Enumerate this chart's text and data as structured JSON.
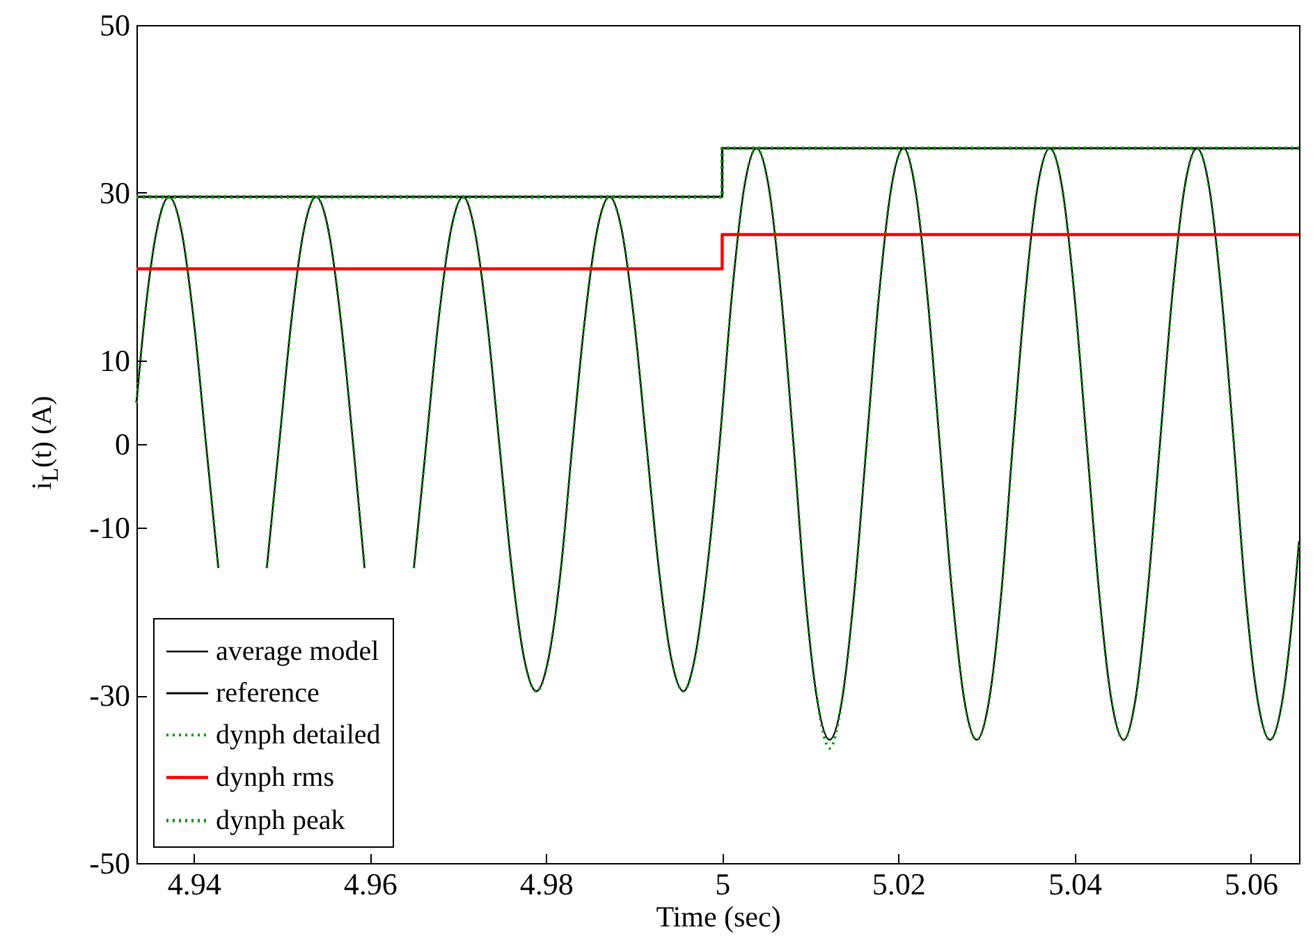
{
  "chart_data": {
    "type": "line",
    "xlabel": "Time (sec)",
    "ylabel": "i$_{L}$(t) (A)",
    "xlim": [
      4.9335,
      5.0655
    ],
    "xticks": [
      4.94,
      4.96,
      4.98,
      5,
      5.02,
      5.04,
      5.06
    ],
    "ylim": [
      -50,
      50
    ],
    "yticks": [
      -50,
      -30,
      -10,
      0,
      10,
      30,
      50
    ],
    "grid": false,
    "legend": "bottom left",
    "series": [
      {
        "name": "average model",
        "color": "#000000",
        "type": "line",
        "line_style": "solid",
        "x": [
          4.9335,
          4.9344,
          4.9358,
          4.9372,
          4.9386,
          4.94,
          4.9414,
          4.9428,
          4.9442,
          4.9456,
          4.9469,
          4.9483,
          4.9497,
          4.9511,
          4.9525,
          4.9539,
          4.9553,
          4.9567,
          4.9581,
          4.9594,
          4.9608,
          4.9622,
          4.9636,
          4.965,
          4.9664,
          4.9678,
          4.9692,
          4.9706,
          4.9719,
          4.9733,
          4.9747,
          4.9761,
          4.9775,
          4.9789,
          4.9803,
          4.9817,
          4.983,
          4.9844,
          4.9858,
          4.9872,
          4.9886,
          4.99,
          4.9914,
          4.9928,
          4.9942,
          4.9956,
          4.9969,
          4.9983,
          4.9997,
          5.0011,
          5.0025,
          5.0039,
          5.0053,
          5.0067,
          5.0081,
          5.0094,
          5.0108,
          5.0122,
          5.0136,
          5.015,
          5.0164,
          5.0178,
          5.0192,
          5.0206,
          5.0219,
          5.0233,
          5.0247,
          5.0261,
          5.0275,
          5.0289,
          5.0303,
          5.0317,
          5.033,
          5.0344,
          5.0358,
          5.0372,
          5.0386,
          5.04,
          5.0414,
          5.0428,
          5.0442,
          5.0456,
          5.0469,
          5.0483,
          5.0497,
          5.0511,
          5.0525,
          5.0539,
          5.0553,
          5.0567,
          5.0581,
          5.0594,
          5.0608,
          5.0622,
          5.0636,
          5.065,
          5.0655
        ],
        "values": [
          4.9,
          14.8,
          25.5,
          29.5,
          25.5,
          14.8,
          0,
          -14.8,
          null,
          null,
          null,
          -14.8,
          0,
          14.8,
          25.5,
          29.5,
          25.5,
          14.8,
          0,
          -14.8,
          null,
          null,
          null,
          -14.8,
          0,
          14.8,
          25.5,
          29.5,
          25.5,
          14.8,
          0,
          -14.8,
          -25.5,
          -29.5,
          -25.5,
          -14.8,
          0,
          14.8,
          25.5,
          29.5,
          25.5,
          14.8,
          0,
          -14.8,
          -25.5,
          -29.5,
          -25.5,
          -14.8,
          0,
          17.7,
          30.6,
          35.3,
          30.6,
          17.7,
          0,
          -17.7,
          -30.6,
          -35.3,
          -30.6,
          -17.7,
          0,
          17.7,
          30.6,
          35.3,
          30.6,
          17.7,
          0,
          -17.7,
          -30.6,
          -35.3,
          -30.6,
          -17.7,
          0,
          17.7,
          30.6,
          35.3,
          30.6,
          17.7,
          0,
          -17.7,
          -30.6,
          -35.3,
          -30.6,
          -17.7,
          0,
          17.7,
          30.6,
          35.3,
          30.6,
          17.7,
          0,
          -17.7,
          -30.6,
          -35.3,
          -30.6,
          -17.7,
          -11.6
        ]
      },
      {
        "name": "reference",
        "color": "#000000",
        "type": "step",
        "line_style": "solid",
        "x": [
          4.9335,
          5,
          5.0655
        ],
        "values": [
          29.5,
          35.3,
          35.3
        ]
      },
      {
        "name": "dynph detailed",
        "color": "#009900",
        "type": "line",
        "line_style": "dotted",
        "x": [
          4.9335,
          4.9344,
          4.9358,
          4.9372,
          4.9386,
          4.94,
          4.9414,
          4.9428,
          4.9442,
          4.9456,
          4.9469,
          4.9483,
          4.9497,
          4.9511,
          4.9525,
          4.9539,
          4.9553,
          4.9567,
          4.9581,
          4.9594,
          4.9608,
          4.9622,
          4.9636,
          4.965,
          4.9664,
          4.9678,
          4.9692,
          4.9706,
          4.9719,
          4.9733,
          4.9747,
          4.9761,
          4.9775,
          4.9789,
          4.9803,
          4.9817,
          4.983,
          4.9844,
          4.9858,
          4.9872,
          4.9886,
          4.99,
          4.9914,
          4.9928,
          4.9942,
          4.9956,
          4.9969,
          4.9983,
          4.9997,
          5.0011,
          5.0025,
          5.0039,
          5.0053,
          5.0067,
          5.0081,
          5.0094,
          5.0108,
          5.0122,
          5.0136,
          5.015,
          5.0164,
          5.0178,
          5.0192,
          5.0206,
          5.0219,
          5.0233,
          5.0247,
          5.0261,
          5.0275,
          5.0289,
          5.0303,
          5.0317,
          5.033,
          5.0344,
          5.0358,
          5.0372,
          5.0386,
          5.04,
          5.0414,
          5.0428,
          5.0442,
          5.0456,
          5.0469,
          5.0483,
          5.0497,
          5.0511,
          5.0525,
          5.0539,
          5.0553,
          5.0567,
          5.0581,
          5.0594,
          5.0608,
          5.0622,
          5.0636,
          5.065,
          5.0655
        ],
        "values": [
          4.9,
          14.8,
          25.5,
          29.5,
          25.5,
          14.8,
          0,
          -14.8,
          null,
          null,
          null,
          -14.8,
          0,
          14.8,
          25.5,
          29.5,
          25.5,
          14.8,
          0,
          -14.8,
          null,
          null,
          null,
          -14.8,
          0,
          14.8,
          25.5,
          29.5,
          25.5,
          14.8,
          0,
          -14.8,
          -25.5,
          -29.5,
          -25.5,
          -14.8,
          0,
          14.8,
          25.5,
          29.5,
          25.5,
          14.8,
          0,
          -14.8,
          -25.5,
          -29.5,
          -25.5,
          -14.8,
          0,
          17.7,
          30.6,
          35.3,
          30.6,
          17.7,
          0,
          -17.7,
          -30.6,
          -36.3,
          -30.6,
          -17.7,
          0,
          17.7,
          30.6,
          35.3,
          30.6,
          17.7,
          0,
          -17.7,
          -30.6,
          -35.3,
          -30.6,
          -17.7,
          0,
          17.7,
          30.6,
          35.3,
          30.6,
          17.7,
          0,
          -17.7,
          -30.6,
          -35.3,
          -30.6,
          -17.7,
          0,
          17.7,
          30.6,
          35.3,
          30.6,
          17.7,
          0,
          -17.7,
          -30.6,
          -35.3,
          -30.6,
          -17.7,
          -11.6
        ]
      },
      {
        "name": "dynph rms",
        "color": "#ff0000",
        "type": "step",
        "line_style": "solid",
        "x": [
          4.9335,
          5,
          5.0655
        ],
        "values": [
          20.9,
          25.0,
          25.0
        ]
      },
      {
        "name": "dynph peak",
        "color": "#009900",
        "type": "step",
        "line_style": "dotted",
        "x": [
          4.9335,
          5,
          5.0655
        ],
        "values": [
          29.5,
          35.3,
          35.3
        ]
      }
    ]
  }
}
